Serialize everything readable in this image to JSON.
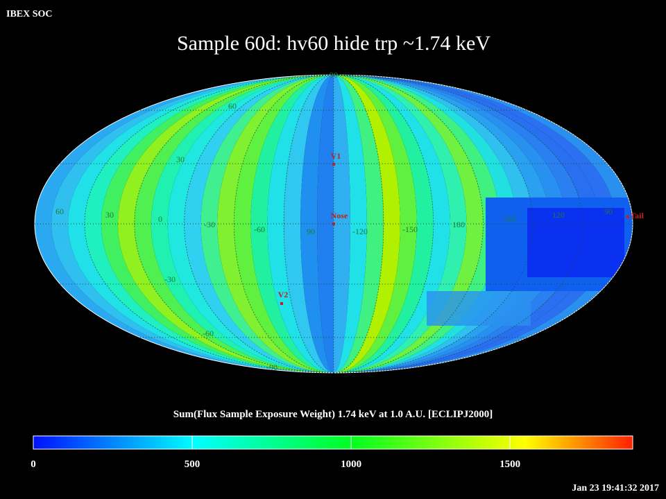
{
  "header": {
    "label": "IBEX SOC",
    "title": "Sample 60d: hv60 hide trp ~1.74 keV",
    "timestamp": "Jan 23 19:41:32 2017"
  },
  "map": {
    "grid_labels": [
      "90",
      "60",
      "30",
      "60",
      "30",
      "0",
      "-30",
      "-60",
      "90",
      "-120",
      "-150",
      "180",
      "150",
      "120",
      "90",
      "-30",
      "-60",
      "-90"
    ],
    "markers": [
      "V1",
      "Nose",
      "V2",
      "Tail"
    ]
  },
  "colorbar": {
    "title": "Sum(Flux Sample Exposure Weight)  1.74 keV at 1.0 A.U. [ECLIPJ2000]",
    "range": [
      0,
      1886
    ],
    "ticks": [
      0,
      500,
      1000,
      1500
    ]
  }
}
